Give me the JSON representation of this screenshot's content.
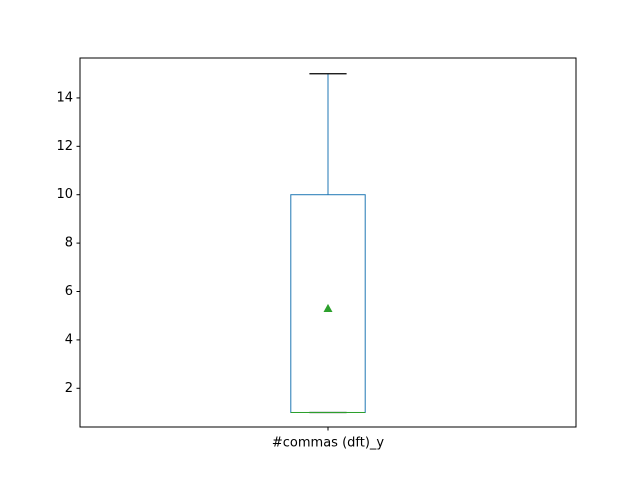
{
  "chart_data": {
    "type": "box",
    "categories": [
      "#commas (dft)_y"
    ],
    "boxes": [
      {
        "name": "#commas (dft)_y",
        "whisker_low": 1,
        "q1": 1,
        "median": 1,
        "q3": 10,
        "whisker_high": 15,
        "mean": 5.3
      }
    ],
    "ylim": [
      0.4,
      15.65
    ],
    "yticks": [
      2,
      4,
      6,
      8,
      10,
      12,
      14
    ],
    "grid": false,
    "colors": {
      "box": "#1f77b4",
      "median": "#2ca02c",
      "mean_marker": "#2ca02c",
      "whisker_cap": "#000000",
      "axes": "#000000"
    }
  }
}
